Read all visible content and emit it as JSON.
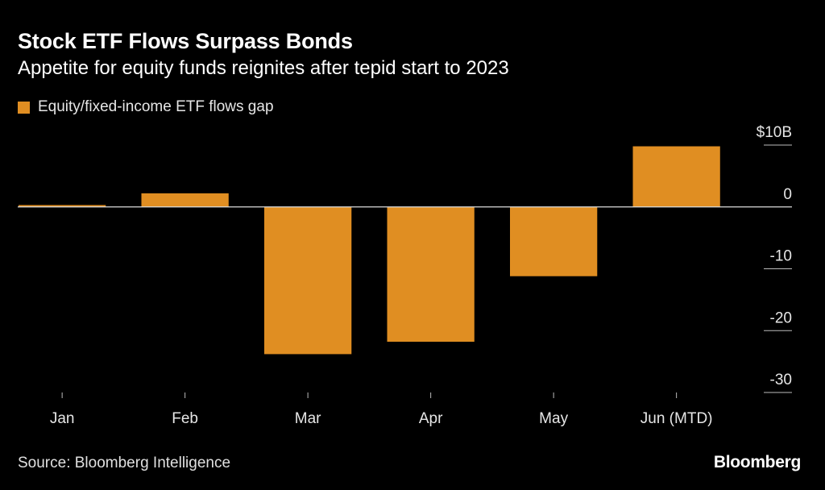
{
  "title": "Stock ETF Flows Surpass Bonds",
  "subtitle": "Appetite for equity funds reignites after tepid start to 2023",
  "source": "Source: Bloomberg Intelligence",
  "brand": "Bloomberg",
  "colors": {
    "bar": "#e08e22",
    "background": "#000000",
    "zero_line": "#dddddd",
    "tick": "#bbbbbb",
    "text": "#ffffff"
  },
  "chart_data": {
    "type": "bar",
    "title": "Stock ETF Flows Surpass Bonds",
    "subtitle": "Appetite for equity funds reignites after tepid start to 2023",
    "legend": [
      "Equity/fixed-income ETF flows gap"
    ],
    "legend_position": "top-left",
    "categories": [
      "Jan",
      "Feb",
      "Mar",
      "Apr",
      "May",
      "Jun (MTD)"
    ],
    "series": [
      {
        "name": "Equity/fixed-income ETF flows gap",
        "values": [
          0.3,
          2.2,
          -23.8,
          -21.8,
          -11.2,
          9.8
        ]
      }
    ],
    "y_ticks": [
      {
        "value": 10,
        "label": "$10B"
      },
      {
        "value": 0,
        "label": "0"
      },
      {
        "value": -10,
        "label": "-10"
      },
      {
        "value": -20,
        "label": "-20"
      },
      {
        "value": -30,
        "label": "-30"
      }
    ],
    "ylim": [
      -30,
      10
    ],
    "xlabel": "",
    "ylabel": "",
    "grid": false,
    "y_axis_position": "right"
  }
}
